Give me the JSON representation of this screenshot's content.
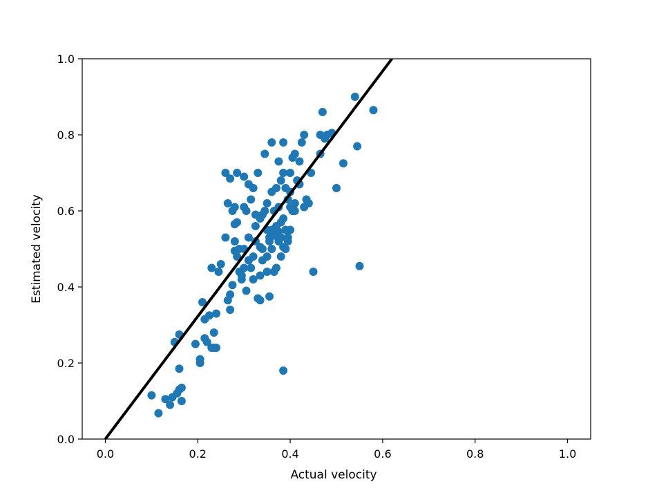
{
  "chart_data": {
    "type": "scatter",
    "title": "",
    "xlabel": "Actual velocity",
    "ylabel": "Estimated velocity",
    "xlim": [
      -0.05,
      1.05
    ],
    "ylim": [
      0.0,
      1.0
    ],
    "xticks": [
      "0.0",
      "0.2",
      "0.4",
      "0.6",
      "0.8",
      "1.0"
    ],
    "yticks": [
      "0.0",
      "0.2",
      "0.4",
      "0.6",
      "0.8",
      "1.0"
    ],
    "grid": false,
    "legend": "none",
    "point_color": "#1f77b4",
    "line_color": "#000000",
    "fit_line": {
      "x": [
        0.0,
        0.62
      ],
      "y": [
        0.0,
        1.0
      ]
    },
    "points": {
      "x": [
        0.1,
        0.115,
        0.13,
        0.14,
        0.145,
        0.155,
        0.16,
        0.16,
        0.165,
        0.15,
        0.16,
        0.165,
        0.195,
        0.205,
        0.205,
        0.21,
        0.215,
        0.215,
        0.22,
        0.225,
        0.23,
        0.235,
        0.235,
        0.24,
        0.24,
        0.245,
        0.23,
        0.25,
        0.26,
        0.26,
        0.265,
        0.27,
        0.27,
        0.275,
        0.27,
        0.28,
        0.28,
        0.28,
        0.285,
        0.285,
        0.285,
        0.29,
        0.29,
        0.295,
        0.295,
        0.3,
        0.3,
        0.3,
        0.305,
        0.305,
        0.31,
        0.31,
        0.31,
        0.315,
        0.315,
        0.32,
        0.32,
        0.325,
        0.325,
        0.33,
        0.33,
        0.335,
        0.335,
        0.34,
        0.34,
        0.345,
        0.345,
        0.35,
        0.35,
        0.35,
        0.355,
        0.355,
        0.36,
        0.36,
        0.36,
        0.365,
        0.365,
        0.37,
        0.37,
        0.37,
        0.375,
        0.375,
        0.375,
        0.38,
        0.38,
        0.38,
        0.385,
        0.385,
        0.385,
        0.39,
        0.39,
        0.39,
        0.395,
        0.395,
        0.4,
        0.4,
        0.4,
        0.405,
        0.405,
        0.41,
        0.41,
        0.415,
        0.42,
        0.42,
        0.425,
        0.43,
        0.43,
        0.435,
        0.44,
        0.445,
        0.3,
        0.31,
        0.325,
        0.335,
        0.355,
        0.365,
        0.375,
        0.385,
        0.395,
        0.41,
        0.32,
        0.34,
        0.36,
        0.38,
        0.4,
        0.45,
        0.465,
        0.465,
        0.47,
        0.475,
        0.48,
        0.49,
        0.5,
        0.515,
        0.54,
        0.545,
        0.55,
        0.58,
        0.385,
        0.335,
        0.35,
        0.275,
        0.265,
        0.28
      ],
      "y": [
        0.115,
        0.068,
        0.105,
        0.09,
        0.11,
        0.12,
        0.13,
        0.185,
        0.135,
        0.255,
        0.275,
        0.1,
        0.25,
        0.21,
        0.2,
        0.36,
        0.265,
        0.315,
        0.255,
        0.325,
        0.24,
        0.28,
        0.24,
        0.33,
        0.24,
        0.44,
        0.45,
        0.46,
        0.53,
        0.7,
        0.62,
        0.38,
        0.34,
        0.6,
        0.685,
        0.495,
        0.52,
        0.565,
        0.48,
        0.57,
        0.7,
        0.44,
        0.5,
        0.42,
        0.43,
        0.45,
        0.61,
        0.69,
        0.39,
        0.6,
        0.47,
        0.53,
        0.67,
        0.45,
        0.63,
        0.66,
        0.42,
        0.56,
        0.59,
        0.37,
        0.7,
        0.43,
        0.58,
        0.59,
        0.47,
        0.6,
        0.75,
        0.48,
        0.55,
        0.62,
        0.375,
        0.53,
        0.78,
        0.65,
        0.5,
        0.44,
        0.6,
        0.45,
        0.56,
        0.66,
        0.61,
        0.52,
        0.73,
        0.48,
        0.68,
        0.53,
        0.58,
        0.7,
        0.78,
        0.5,
        0.55,
        0.66,
        0.63,
        0.52,
        0.55,
        0.65,
        0.7,
        0.6,
        0.74,
        0.62,
        0.75,
        0.68,
        0.67,
        0.73,
        0.78,
        0.8,
        0.61,
        0.63,
        0.62,
        0.7,
        0.5,
        0.47,
        0.52,
        0.505,
        0.52,
        0.535,
        0.545,
        0.505,
        0.53,
        0.6,
        0.48,
        0.5,
        0.55,
        0.57,
        0.61,
        0.44,
        0.75,
        0.8,
        0.86,
        0.79,
        0.8,
        0.805,
        0.66,
        0.725,
        0.9,
        0.77,
        0.455,
        0.865,
        0.18,
        0.365,
        0.44,
        0.405,
        0.365,
        0.61
      ]
    }
  }
}
